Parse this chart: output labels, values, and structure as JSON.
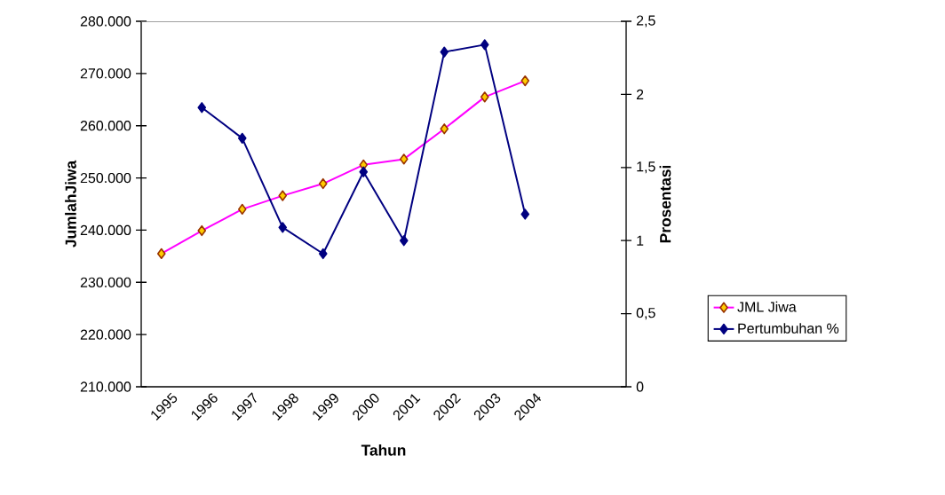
{
  "chart_data": {
    "type": "line",
    "xlabel": "Tahun",
    "ylabel": "JumlahJiwa",
    "y2label": "Prosentasi",
    "categories": [
      "1995",
      "1996",
      "1997",
      "1998",
      "1999",
      "2000",
      "2001",
      "2002",
      "2003",
      "2004",
      null,
      null
    ],
    "series": [
      {
        "name": "JML Jiwa",
        "color": "#ff00ff",
        "values": [
          235500,
          239900,
          244000,
          246600,
          248900,
          252500,
          253600,
          259400,
          265500,
          268600,
          null,
          null
        ]
      },
      {
        "name": "Pertumbuhan %",
        "color": "#000080",
        "axis": "y2",
        "values": [
          null,
          1.91,
          1.7,
          1.09,
          0.91,
          1.47,
          1.0,
          2.29,
          2.34,
          1.18,
          null,
          null
        ]
      }
    ],
    "ylim": [
      210000,
      280000
    ],
    "yticks": [
      {
        "value": 210000,
        "label": "210.000"
      },
      {
        "value": 220000,
        "label": "220.000"
      },
      {
        "value": 230000,
        "label": "230.000"
      },
      {
        "value": 240000,
        "label": "240.000"
      },
      {
        "value": 250000,
        "label": "250.000"
      },
      {
        "value": 260000,
        "label": "260.000"
      },
      {
        "value": 270000,
        "label": "270.000"
      },
      {
        "value": 280000,
        "label": "280.000"
      }
    ],
    "y2lim": [
      0,
      2.5
    ],
    "y2ticks": [
      0,
      {
        "value": 0.5,
        "label": "0,5"
      },
      1,
      {
        "value": 1.5,
        "label": "1,5"
      },
      2,
      {
        "value": 2.5,
        "label": "2,5"
      }
    ],
    "marker": "diamond",
    "line_style": "solid",
    "grid": false,
    "legend": "right"
  }
}
